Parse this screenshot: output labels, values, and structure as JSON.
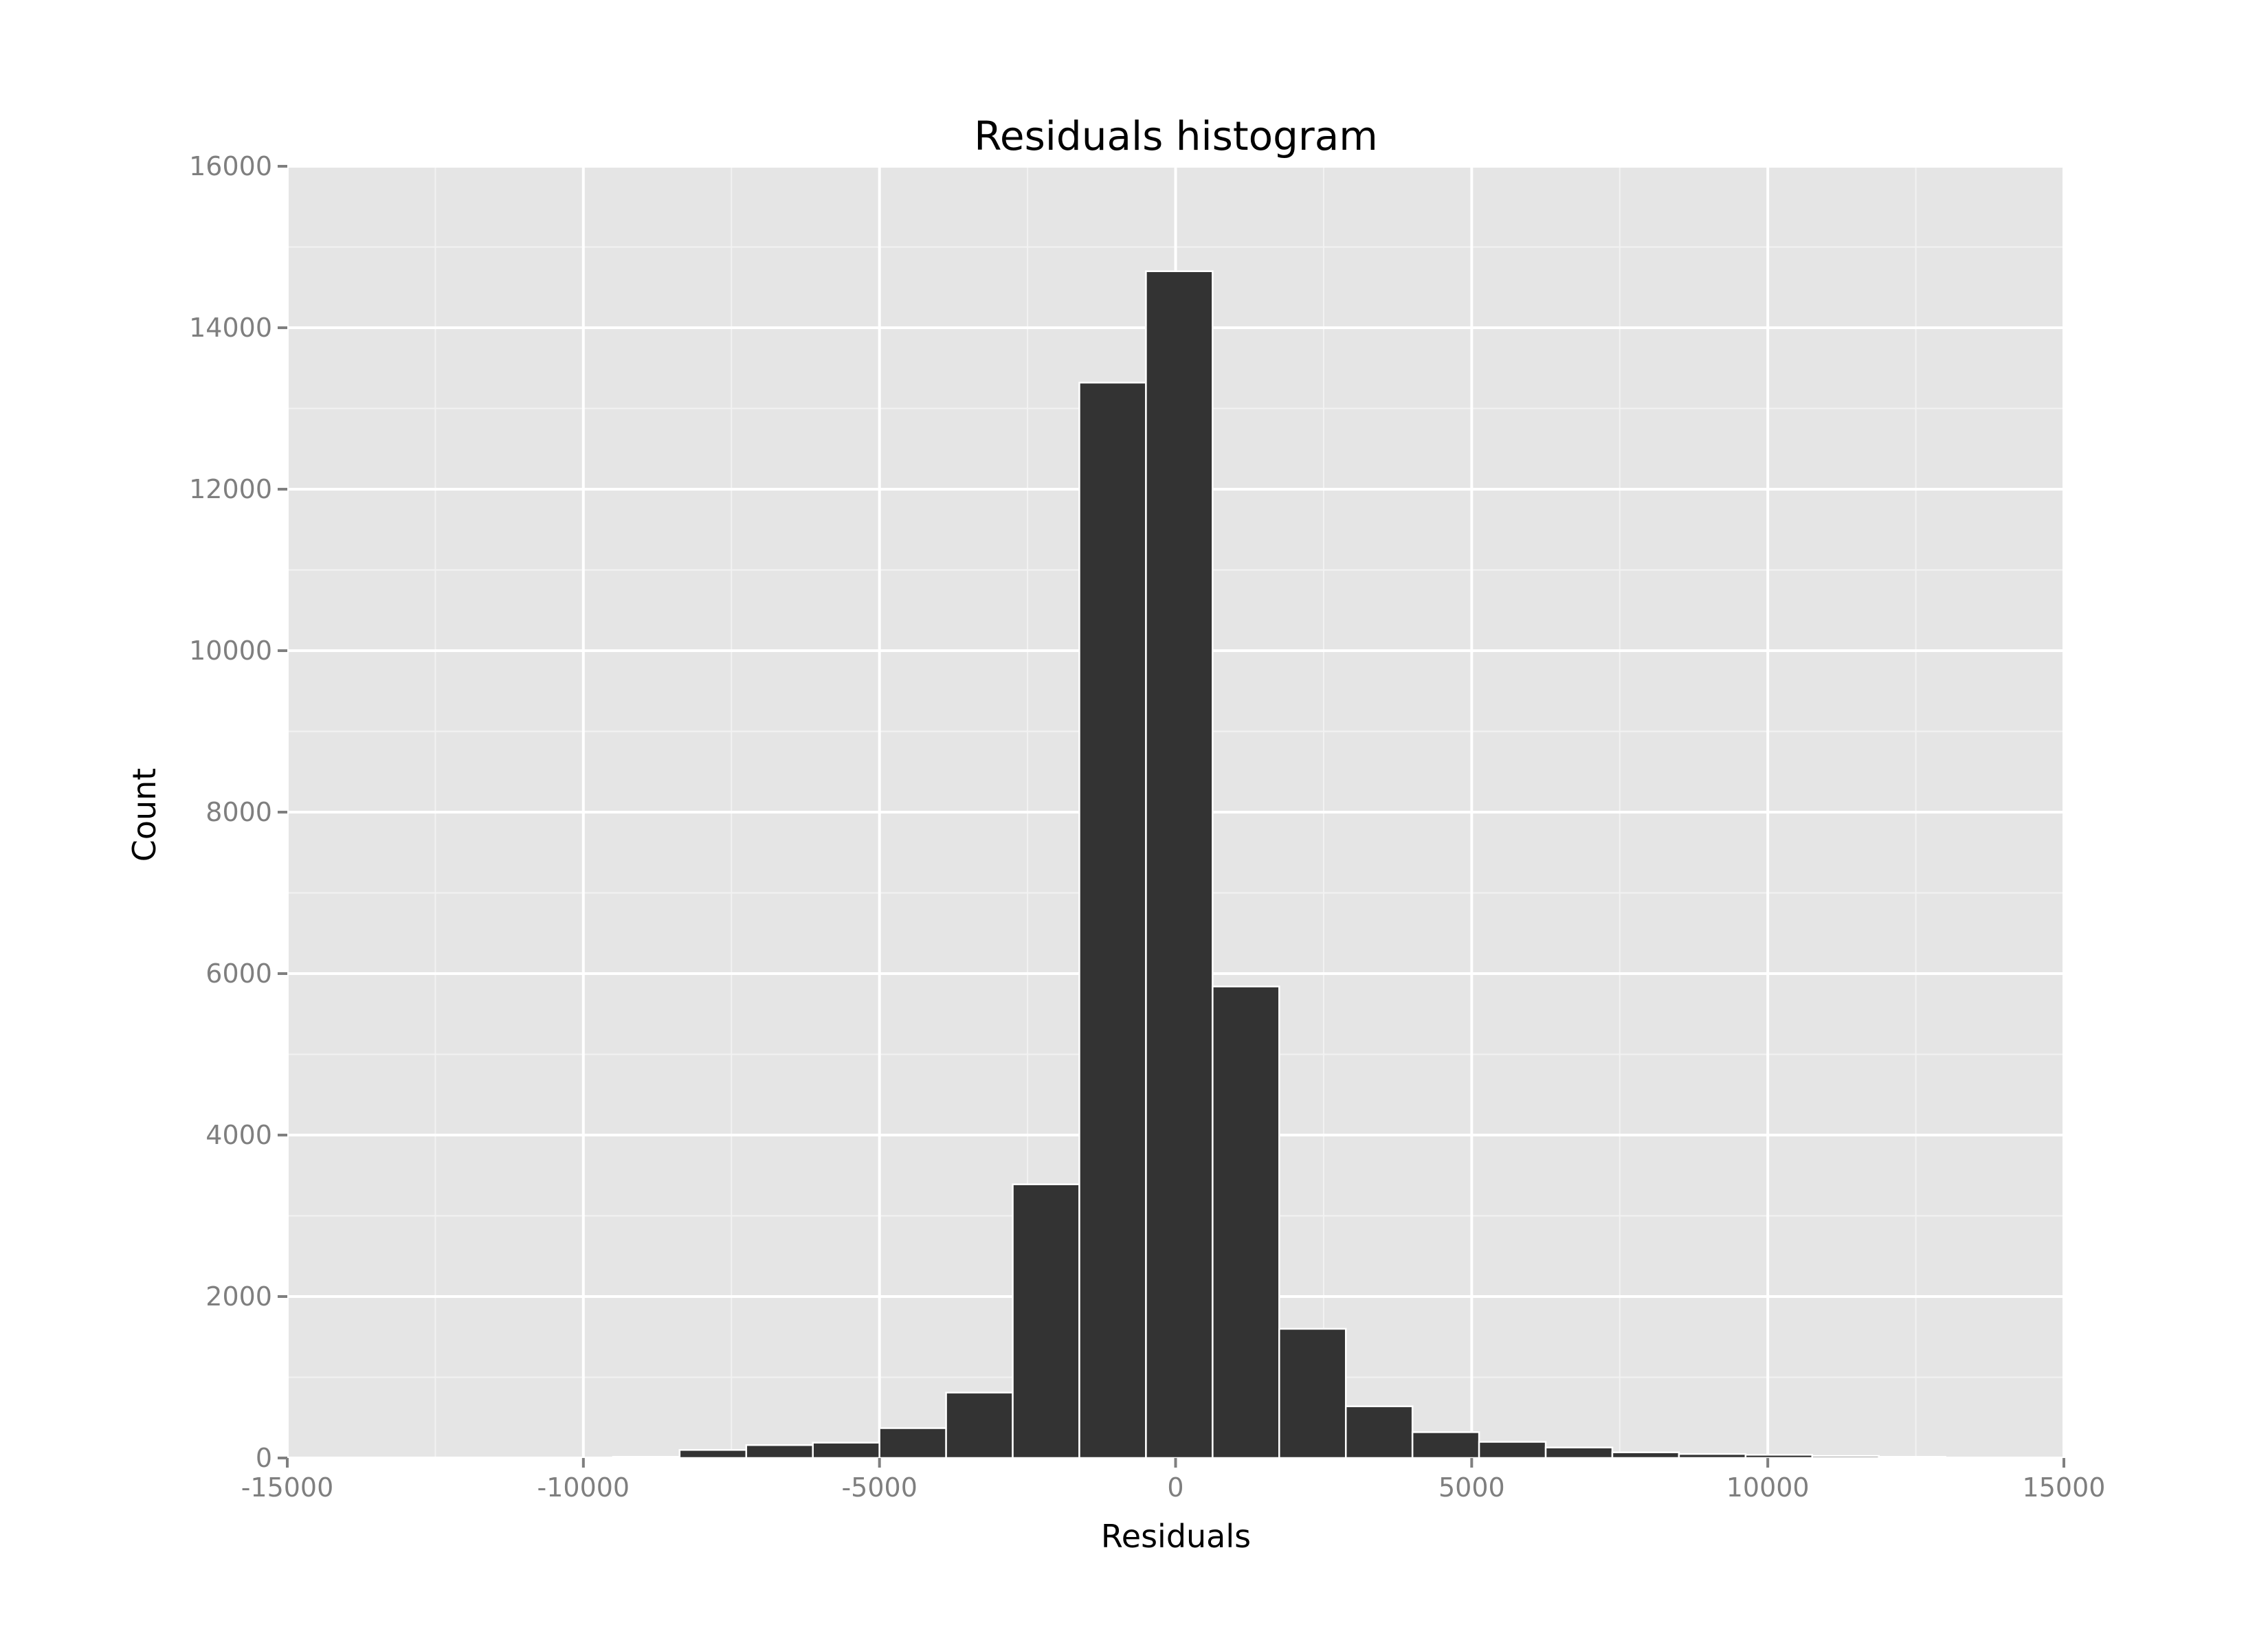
{
  "chart_data": {
    "type": "bar",
    "title": "Residuals histogram",
    "xlabel": "Residuals",
    "ylabel": "Count",
    "xlim": [
      -15000,
      15000
    ],
    "ylim": [
      0,
      16000
    ],
    "xticks": [
      -15000,
      -10000,
      -5000,
      0,
      5000,
      10000,
      15000
    ],
    "yticks": [
      0,
      2000,
      4000,
      6000,
      8000,
      10000,
      12000,
      14000,
      16000
    ],
    "x_tick_labels": [
      "-15000",
      "-10000",
      "-5000",
      "0",
      "5000",
      "10000",
      "15000"
    ],
    "y_tick_labels": [
      "0",
      "2000",
      "4000",
      "6000",
      "8000",
      "10000",
      "12000",
      "14000",
      "16000"
    ],
    "grid": true,
    "bin_width": 1125,
    "bins": [
      {
        "x0": -9500,
        "x1": -8375,
        "count": 15
      },
      {
        "x0": -8375,
        "x1": -7250,
        "count": 100
      },
      {
        "x0": -7250,
        "x1": -6125,
        "count": 160
      },
      {
        "x0": -6125,
        "x1": -5000,
        "count": 190
      },
      {
        "x0": -5000,
        "x1": -3875,
        "count": 370
      },
      {
        "x0": -3875,
        "x1": -2750,
        "count": 810
      },
      {
        "x0": -2750,
        "x1": -1625,
        "count": 3390
      },
      {
        "x0": -1625,
        "x1": -500,
        "count": 13320
      },
      {
        "x0": -500,
        "x1": 625,
        "count": 14700
      },
      {
        "x0": 625,
        "x1": 1750,
        "count": 5840
      },
      {
        "x0": 1750,
        "x1": 2875,
        "count": 1600
      },
      {
        "x0": 2875,
        "x1": 4000,
        "count": 640
      },
      {
        "x0": 4000,
        "x1": 5125,
        "count": 320
      },
      {
        "x0": 5125,
        "x1": 6250,
        "count": 200
      },
      {
        "x0": 6250,
        "x1": 7375,
        "count": 130
      },
      {
        "x0": 7375,
        "x1": 8500,
        "count": 70
      },
      {
        "x0": 8500,
        "x1": 9625,
        "count": 50
      },
      {
        "x0": 9625,
        "x1": 10750,
        "count": 40
      },
      {
        "x0": 10750,
        "x1": 11875,
        "count": 25
      },
      {
        "x0": 11875,
        "x1": 13000,
        "count": 15
      }
    ],
    "colors": {
      "panel": "#e5e5e5",
      "grid_major": "#ffffff",
      "grid_minor": "#f2f2f2",
      "bar_fill": "#333333",
      "bar_edge": "#ffffff",
      "tick_text": "#7f7f7f",
      "tick_mark": "#7f7f7f"
    }
  }
}
